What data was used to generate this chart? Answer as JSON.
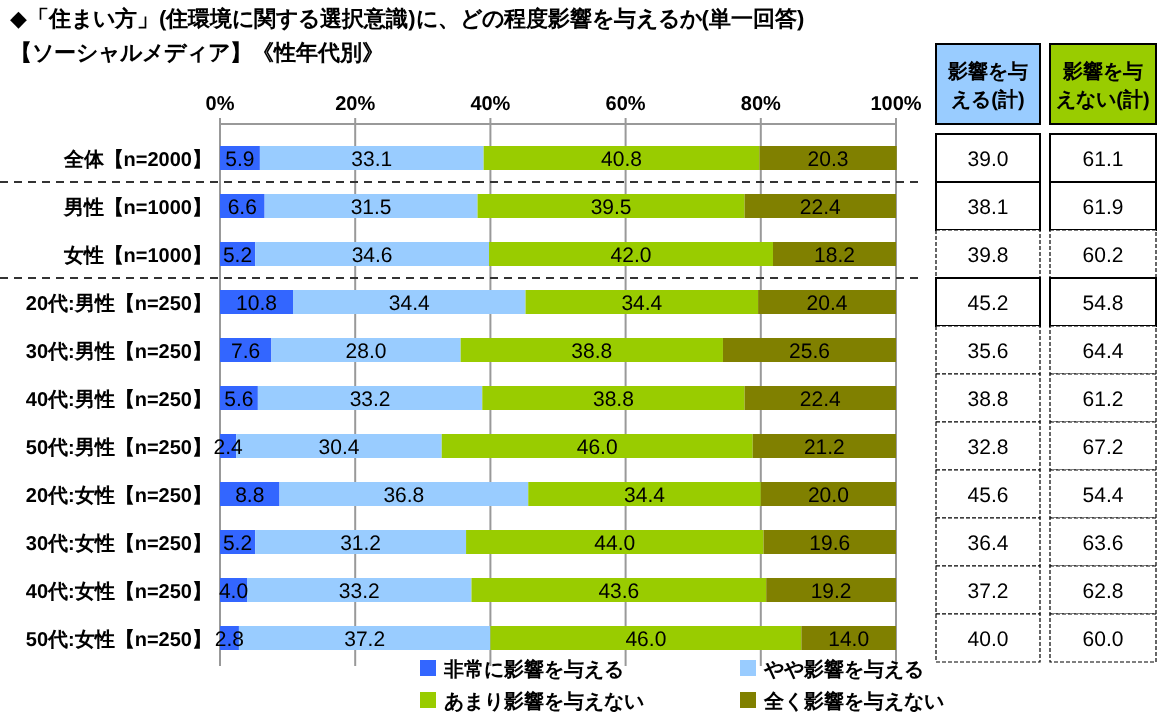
{
  "chart_data": [
    {
      "type": "bar",
      "orientation": "horizontal",
      "stacked": true,
      "title": "◆「住まい方」(住環境に関する選択意識)に、どの程度影響を与えるか(単一回答)",
      "subtitle": "【ソーシャルメディア】《性年代別》",
      "categories": [
        "全体【n=2000】",
        "男性【n=1000】",
        "女性【n=1000】",
        "20代:男性【n=250】",
        "30代:男性【n=250】",
        "40代:男性【n=250】",
        "50代:男性【n=250】",
        "20代:女性【n=250】",
        "30代:女性【n=250】",
        "40代:女性【n=250】",
        "50代:女性【n=250】"
      ],
      "series": [
        {
          "name": "非常に影響を与える",
          "color": "#3366ff",
          "values": [
            5.9,
            6.6,
            5.2,
            10.8,
            7.6,
            5.6,
            2.4,
            8.8,
            5.2,
            4.0,
            2.8
          ],
          "value_labels": [
            "5.9",
            "6.6",
            "5.2",
            "10.8",
            "7.6",
            "5.6",
            "2.4",
            "8.8",
            "5.2",
            "4.0",
            "2.8"
          ]
        },
        {
          "name": "やや影響を与える",
          "color": "#99ccff",
          "values": [
            33.1,
            31.5,
            34.6,
            34.4,
            28.0,
            33.2,
            30.4,
            36.8,
            31.2,
            33.2,
            37.2
          ],
          "value_labels": [
            "33.1",
            "31.5",
            "34.6",
            "34.4",
            "28.0",
            "33.2",
            "30.4",
            "36.8",
            "31.2",
            "33.2",
            "37.2"
          ]
        },
        {
          "name": "あまり影響を与えない",
          "color": "#99cc00",
          "values": [
            40.8,
            39.5,
            42.0,
            34.4,
            38.8,
            38.8,
            46.0,
            34.4,
            44.0,
            43.6,
            46.0
          ],
          "value_labels": [
            "40.8",
            "39.5",
            "42.0",
            "34.4",
            "38.8",
            "38.8",
            "46.0",
            "34.4",
            "44.0",
            "43.6",
            "46.0"
          ]
        },
        {
          "name": "全く影響を与えない",
          "color": "#808000",
          "values": [
            20.3,
            22.4,
            18.2,
            20.4,
            25.6,
            22.4,
            21.2,
            20.0,
            19.6,
            19.2,
            14.0
          ],
          "value_labels": [
            "20.3",
            "22.4",
            "18.2",
            "20.4",
            "25.6",
            "22.4",
            "21.2",
            "20.0",
            "19.6",
            "19.2",
            "14.0"
          ]
        }
      ],
      "xlim": [
        0,
        100
      ],
      "xticks": [
        {
          "value": 0,
          "label": "0%"
        },
        {
          "value": 20,
          "label": "20%"
        },
        {
          "value": 40,
          "label": "40%"
        },
        {
          "value": 60,
          "label": "60%"
        },
        {
          "value": 80,
          "label": "80%"
        },
        {
          "value": 100,
          "label": "100%"
        }
      ],
      "grid": "x",
      "legend": "bottom"
    },
    {
      "type": "other",
      "categories": [
        "影響を与える(計)",
        "影響を与えない(計)"
      ],
      "series": [
        {
          "values": [
            39.0,
            61.1
          ],
          "value_labels": [
            "39.0",
            "61.1"
          ]
        },
        {
          "values": [
            38.1,
            61.9
          ],
          "value_labels": [
            "38.1",
            "61.9"
          ]
        },
        {
          "values": [
            39.8,
            60.2
          ],
          "value_labels": [
            "39.8",
            "60.2"
          ]
        },
        {
          "values": [
            45.2,
            54.8
          ],
          "value_labels": [
            "45.2",
            "54.8"
          ]
        },
        {
          "values": [
            35.6,
            64.4
          ],
          "value_labels": [
            "35.6",
            "64.4"
          ]
        },
        {
          "values": [
            38.8,
            61.2
          ],
          "value_labels": [
            "38.8",
            "61.2"
          ]
        },
        {
          "values": [
            32.8,
            67.2
          ],
          "value_labels": [
            "32.8",
            "67.2"
          ]
        },
        {
          "values": [
            45.6,
            54.4
          ],
          "value_labels": [
            "45.6",
            "54.4"
          ]
        },
        {
          "values": [
            36.4,
            63.6
          ],
          "value_labels": [
            "36.4",
            "63.6"
          ]
        },
        {
          "values": [
            37.2,
            62.8
          ],
          "value_labels": [
            "37.2",
            "62.8"
          ]
        },
        {
          "values": [
            40.0,
            60.0
          ],
          "value_labels": [
            "40.0",
            "60.0"
          ]
        }
      ]
    }
  ]
}
